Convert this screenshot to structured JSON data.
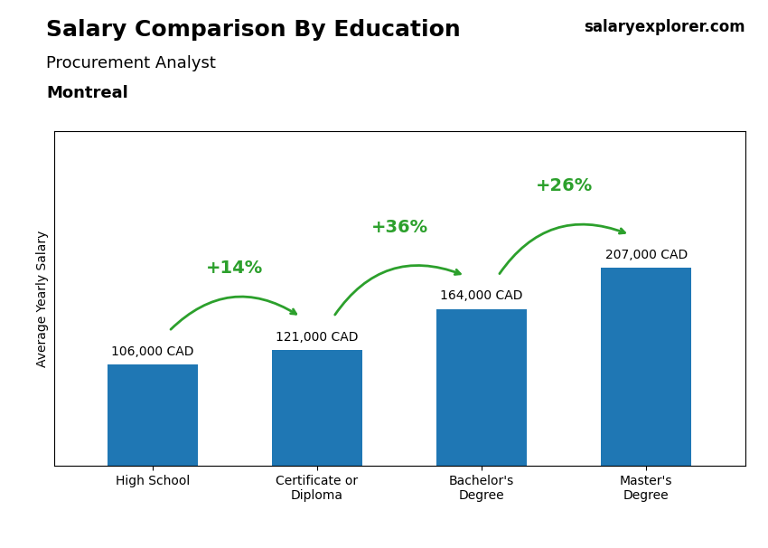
{
  "chart_data": {
    "type": "bar",
    "title": "Salary Comparison By Education",
    "subtitle": "Procurement Analyst",
    "annotations": [
      "Montreal",
      "salaryexplorer.com"
    ],
    "ylabel": "Average Yearly Salary",
    "categories": [
      "High School",
      "Certificate or\nDiploma",
      "Bachelor's\nDegree",
      "Master's\nDegree"
    ],
    "values": [
      106000,
      121000,
      164000,
      207000
    ],
    "value_labels": [
      "106,000 CAD",
      "121,000 CAD",
      "164,000 CAD",
      "207,000 CAD"
    ],
    "data_labels": true,
    "changes": [
      14,
      36,
      26
    ],
    "change_labels": [
      "+14%",
      "+36%",
      "+26%"
    ],
    "ylim": [
      0,
      350000
    ],
    "tick_labels": "x",
    "grid": false
  }
}
